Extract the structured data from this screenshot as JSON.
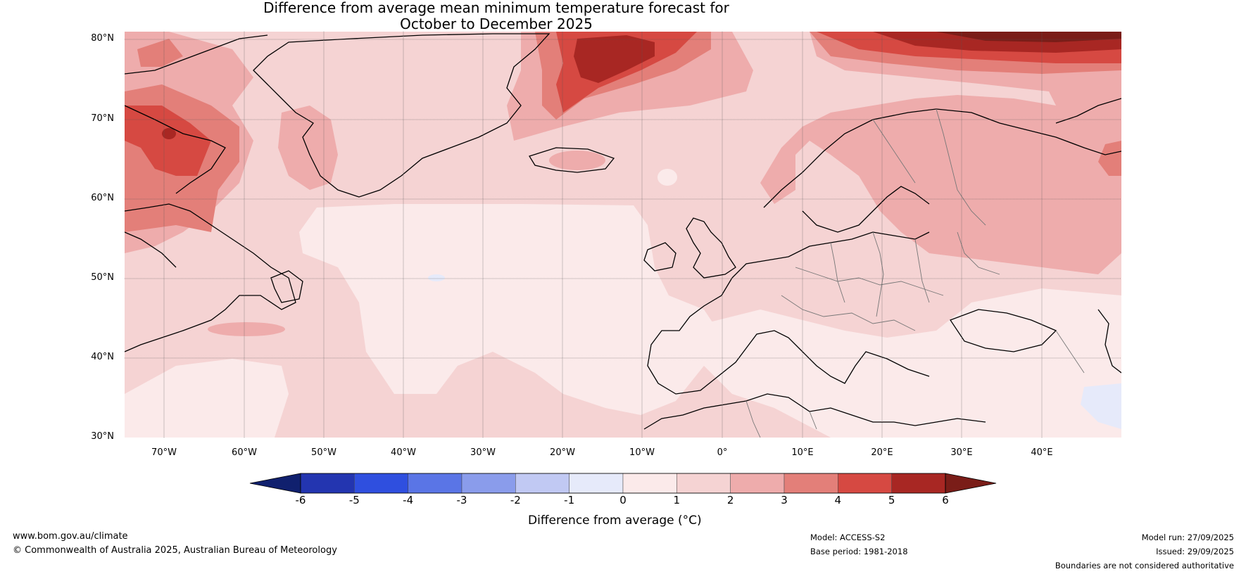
{
  "title": {
    "line1": "Difference from average mean minimum temperature forecast for",
    "line2": "October to December 2025"
  },
  "map": {
    "lat_ticks": [
      "80°N",
      "70°N",
      "60°N",
      "50°N",
      "40°N",
      "30°N"
    ],
    "lon_ticks": [
      "70°W",
      "60°W",
      "50°W",
      "40°W",
      "30°W",
      "20°W",
      "10°W",
      "0°",
      "10°E",
      "20°E",
      "30°E",
      "40°E"
    ],
    "extent": {
      "lon_min": -75,
      "lon_max": 50,
      "lat_min": 30,
      "lat_max": 81
    }
  },
  "colorbar": {
    "ticks": [
      "-6",
      "-5",
      "-4",
      "-3",
      "-2",
      "-1",
      "0",
      "1",
      "2",
      "3",
      "4",
      "5",
      "6"
    ],
    "label": "Difference from average (°C)",
    "colors": [
      "#10206e",
      "#2335b0",
      "#2f4fdf",
      "#5a75e6",
      "#8a9ceb",
      "#c1c9f3",
      "#e6eafa",
      "#fbeaea",
      "#f5d3d3",
      "#eeacac",
      "#e37f79",
      "#d64942",
      "#a82723",
      "#7a1d18"
    ]
  },
  "footer": {
    "website": "www.bom.gov.au/climate",
    "copyright": "© Commonwealth of Australia 2025, Australian Bureau of Meteorology",
    "model": "Model: ACCESS-S2",
    "base_period": "Base period: 1981-2018",
    "model_run": "Model run: 27/09/2025",
    "issued": "Issued: 29/09/2025",
    "disclaimer": "Boundaries are not considered authoritative"
  }
}
